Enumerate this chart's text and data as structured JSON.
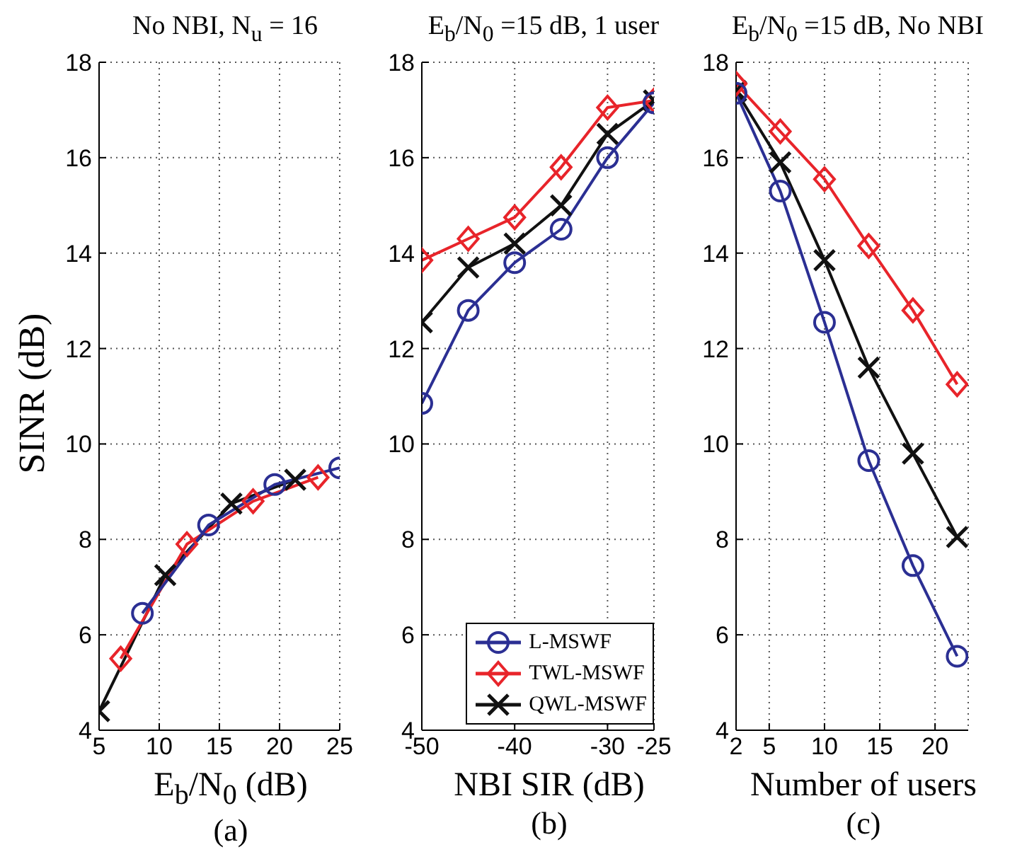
{
  "chart_data": [
    {
      "type": "line",
      "title": "No NBI, N$_{u}$ = 16",
      "xlabel": "E$_{b}$/N$_{0}$ (dB)",
      "ylabel": "SINR (dB)",
      "annotations": [
        "(a)"
      ],
      "xlim": [
        5,
        25
      ],
      "xticks": [
        5,
        10,
        15,
        20,
        25
      ],
      "ylim": [
        4,
        18
      ],
      "yticks": [
        4,
        6,
        8,
        10,
        12,
        14,
        16,
        18
      ],
      "grid": true,
      "legend": false,
      "line_style": "solid",
      "series": [
        {
          "color": "#2b2f93",
          "marker": "circle",
          "x": [
            8.6,
            14.1,
            19.6,
            25
          ],
          "values": [
            6.45,
            8.3,
            9.15,
            9.5
          ]
        },
        {
          "color": "#e8242a",
          "marker": "diamond",
          "x": [
            6.8,
            12.3,
            17.8,
            23.2
          ],
          "values": [
            5.5,
            7.9,
            8.8,
            9.3
          ]
        },
        {
          "color": "#111111",
          "marker": "cross",
          "x": [
            5,
            10.5,
            16,
            21.3
          ],
          "values": [
            4.4,
            7.25,
            8.75,
            9.25
          ]
        }
      ]
    },
    {
      "type": "line",
      "title": "E$_{b}$/N$_{0}$ =15 dB, 1 user",
      "xlabel": "NBI SIR (dB)",
      "annotations": [
        "(b)"
      ],
      "x": [
        -50,
        -45,
        -40,
        -35,
        -30,
        -25
      ],
      "xlim": [
        -50,
        -25
      ],
      "xticks": [
        -50,
        -40,
        -30,
        -25
      ],
      "ylim": [
        4,
        18
      ],
      "yticks": [
        4,
        6,
        8,
        10,
        12,
        14,
        16,
        18
      ],
      "grid": true,
      "legend": "bottom right",
      "line_style": "solid",
      "series": [
        {
          "name": "L-MSWF",
          "color": "#2b2f93",
          "marker": "circle",
          "values": [
            10.85,
            12.8,
            13.8,
            14.5,
            16.0,
            17.15
          ]
        },
        {
          "name": "TWL-MSWF",
          "color": "#e8242a",
          "marker": "diamond",
          "values": [
            13.85,
            14.3,
            14.75,
            15.8,
            17.05,
            17.2
          ]
        },
        {
          "name": "QWL-MSWF",
          "color": "#111111",
          "marker": "cross",
          "values": [
            12.55,
            13.7,
            14.2,
            15.0,
            16.5,
            17.2
          ]
        }
      ]
    },
    {
      "type": "line",
      "title": "E$_{b}$/N$_{0}$ =15 dB, No NBI",
      "xlabel": "Number of users",
      "annotations": [
        "(c)"
      ],
      "x": [
        2,
        6,
        10,
        14,
        18,
        22
      ],
      "xlim": [
        2,
        23
      ],
      "xticks": [
        2,
        5,
        10,
        15,
        20
      ],
      "ylim": [
        4,
        18
      ],
      "yticks": [
        4,
        6,
        8,
        10,
        12,
        14,
        16,
        18
      ],
      "grid": true,
      "legend": false,
      "line_style": "solid",
      "series": [
        {
          "color": "#2b2f93",
          "marker": "circle",
          "values": [
            17.35,
            15.3,
            12.55,
            9.65,
            7.45,
            5.55
          ]
        },
        {
          "color": "#e8242a",
          "marker": "diamond",
          "values": [
            17.55,
            16.55,
            15.55,
            14.15,
            12.8,
            11.25
          ]
        },
        {
          "color": "#111111",
          "marker": "cross",
          "values": [
            17.4,
            15.9,
            13.85,
            11.6,
            9.8,
            8.05
          ]
        }
      ]
    }
  ]
}
